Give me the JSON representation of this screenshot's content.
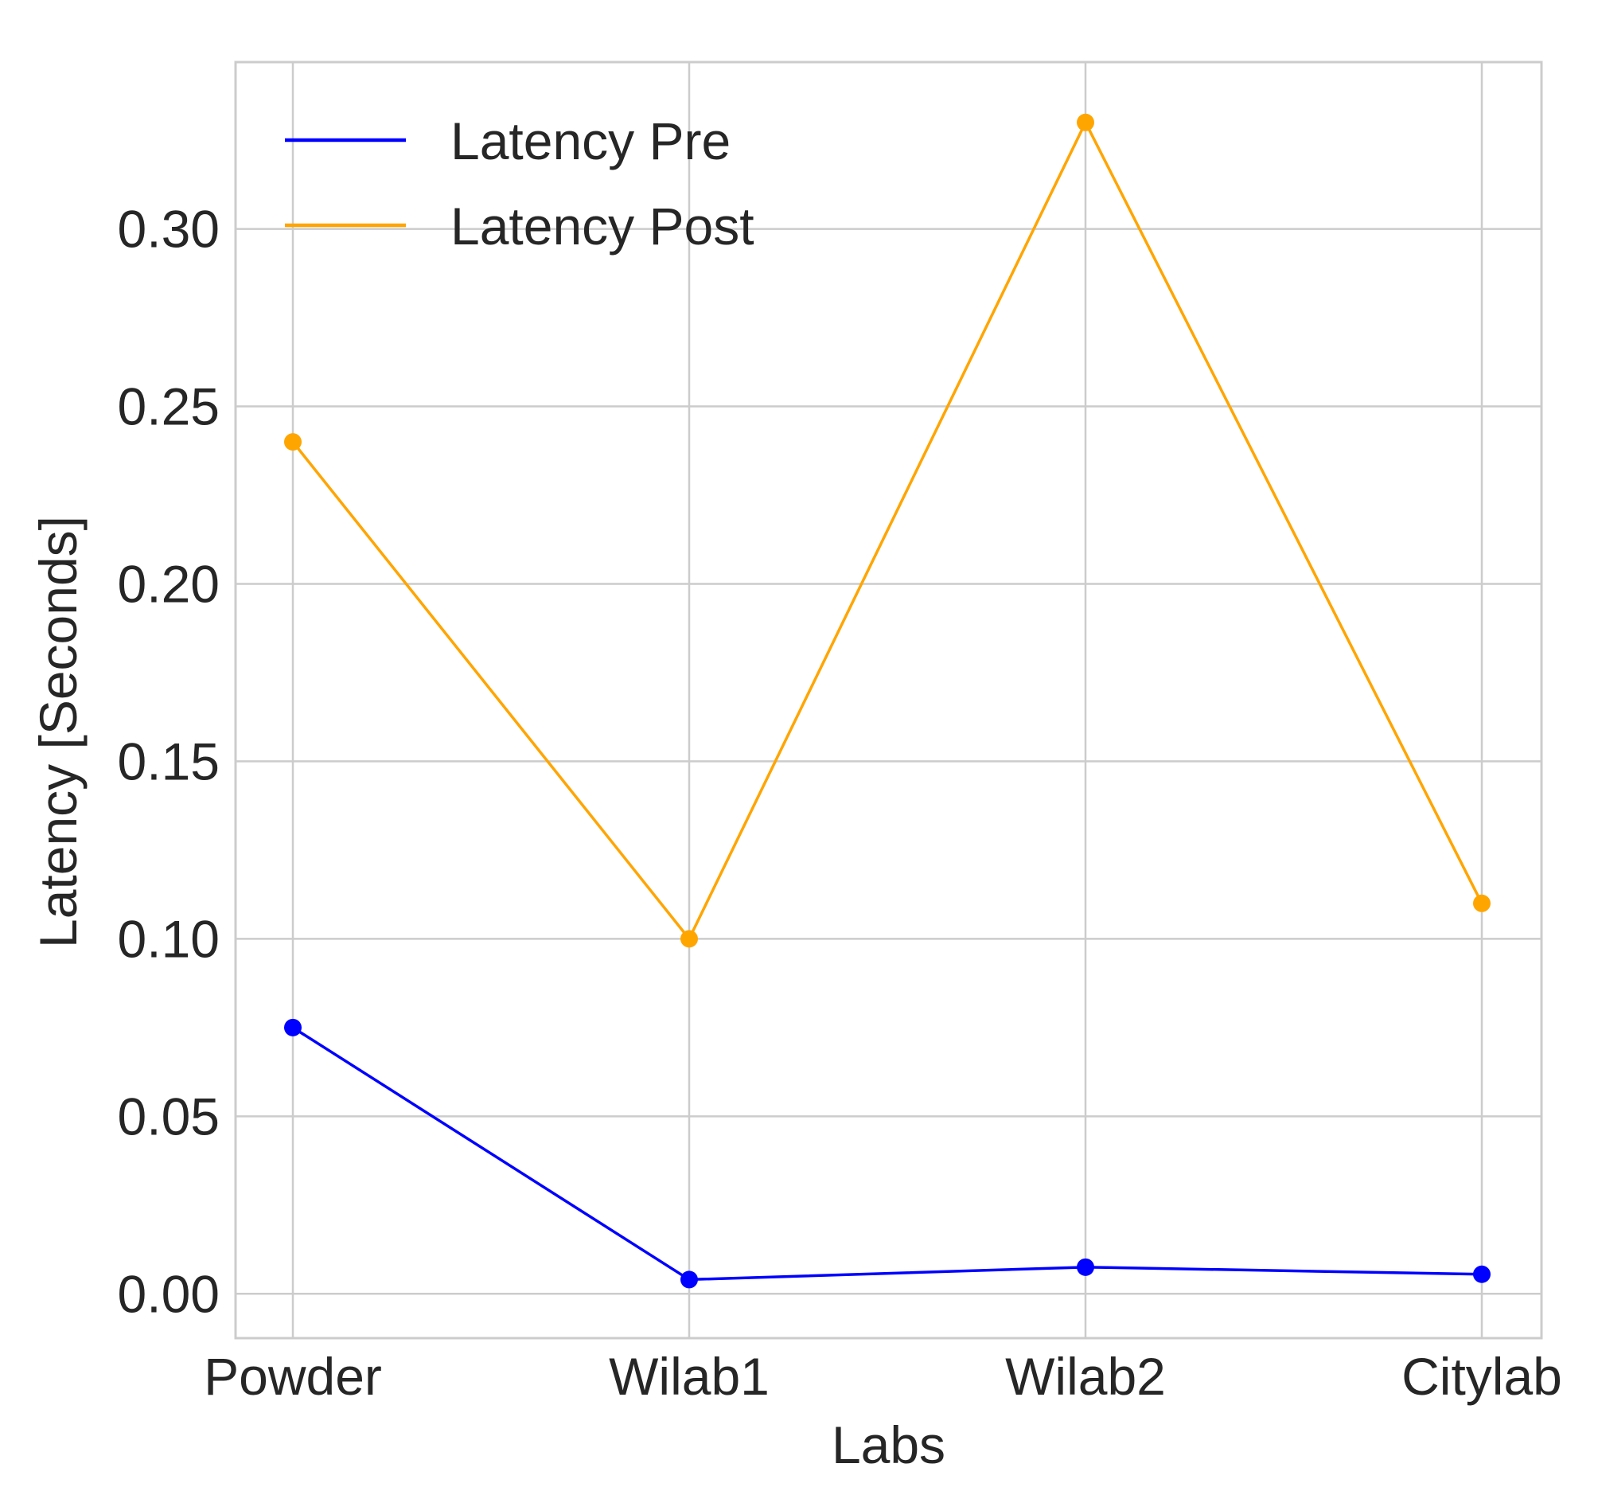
{
  "chart_data": {
    "type": "line",
    "title": "",
    "xlabel": "Labs",
    "ylabel": "Latency  [Seconds]",
    "categories": [
      "Powder",
      "Wilab1",
      "Wilab2",
      "Citylab"
    ],
    "series": [
      {
        "name": "Latency Pre",
        "color": "#0000ff",
        "values": [
          0.075,
          0.004,
          0.0075,
          0.0055
        ]
      },
      {
        "name": "Latency Post",
        "color": "#ffa500",
        "values": [
          0.24,
          0.1,
          0.33,
          0.11
        ]
      }
    ],
    "ylim": [
      -0.0125,
      0.347
    ],
    "yticks": [
      0.0,
      0.05,
      0.1,
      0.15,
      0.2,
      0.25,
      0.3
    ],
    "ytick_labels": [
      "0.00",
      "0.05",
      "0.10",
      "0.15",
      "0.20",
      "0.25",
      "0.30"
    ],
    "grid": true,
    "legend_position": "top-left"
  }
}
